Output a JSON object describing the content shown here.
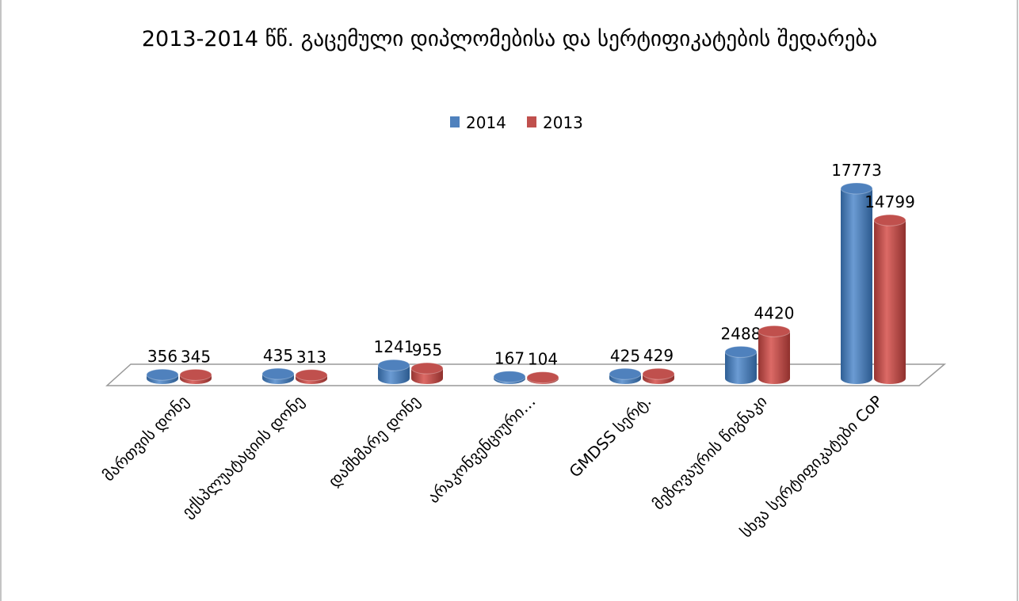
{
  "chart_data": {
    "type": "bar3d",
    "title": "2013-2014 წწ. გაცემული დიპლომებისა და სერტიფიკატების შედარება",
    "categories": [
      "მართვის დონე",
      "ექსპლუატაციის დონე",
      "დამხმარე დონე",
      "არაკონვენციური…",
      "GMDSS სერტ.",
      "მეზღვაურის წიგნაკი",
      "სხვა სერტიფიკატები CoP"
    ],
    "series": [
      {
        "name": "2014",
        "color": "#4f81bd",
        "values": [
          356,
          435,
          1241,
          167,
          425,
          2488,
          17773
        ]
      },
      {
        "name": "2013",
        "color": "#c0504d",
        "values": [
          345,
          313,
          955,
          104,
          429,
          4420,
          14799
        ]
      }
    ],
    "legend": "top"
  }
}
